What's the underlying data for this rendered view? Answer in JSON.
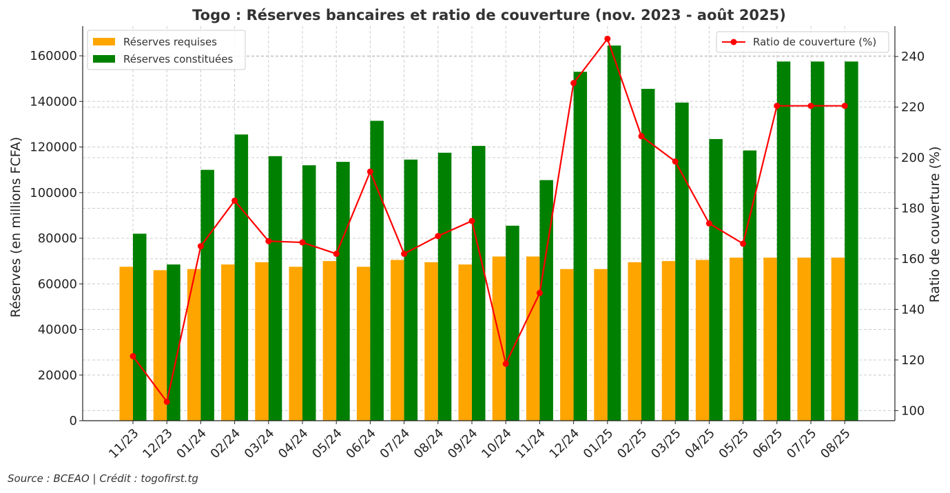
{
  "source_text": "Source : BCEAO | Crédit : togofirst.tg",
  "colors": {
    "required": "#ffa500",
    "held": "#008000",
    "ratio": "#ff0000",
    "grid": "#cccccc"
  },
  "chart_data": {
    "type": "bar",
    "title": "Togo : Réserves bancaires et ratio de couverture (nov. 2023 - août 2025)",
    "ylabel": "Réserves (en millions FCFA)",
    "y2label": "Ratio de couverture (%)",
    "categories": [
      "11/23",
      "12/23",
      "01/24",
      "02/24",
      "03/24",
      "04/24",
      "05/24",
      "06/24",
      "07/24",
      "08/24",
      "09/24",
      "10/24",
      "11/24",
      "12/24",
      "01/25",
      "02/25",
      "03/25",
      "04/25",
      "05/25",
      "06/25",
      "07/25",
      "08/25"
    ],
    "series": [
      {
        "name": "Réserves requises",
        "type": "bar",
        "axis": "left",
        "values": [
          67500,
          66000,
          66500,
          68500,
          69500,
          67500,
          70000,
          67500,
          70500,
          69500,
          68500,
          72000,
          72000,
          66500,
          66500,
          69500,
          70000,
          70500,
          71500,
          71500,
          71500,
          71500
        ]
      },
      {
        "name": "Réserves constituées",
        "type": "bar",
        "axis": "left",
        "values": [
          82000,
          68500,
          110000,
          125500,
          116000,
          112000,
          113500,
          131500,
          114500,
          117500,
          120500,
          85500,
          105500,
          153000,
          164500,
          145500,
          139500,
          123500,
          118500,
          157500,
          157500,
          157500
        ]
      },
      {
        "name": "Ratio de couverture (%)",
        "type": "line",
        "axis": "right",
        "values": [
          121.5,
          103.5,
          165,
          183,
          167,
          166.5,
          162,
          194.5,
          162,
          169,
          175,
          118.5,
          146.5,
          229.5,
          247,
          208.5,
          198.5,
          174,
          166,
          220.5,
          220.5,
          220.5
        ]
      }
    ],
    "ylim": [
      0,
      173000
    ],
    "yticks": [
      0,
      20000,
      40000,
      60000,
      80000,
      100000,
      120000,
      140000,
      160000
    ],
    "y2lim": [
      96,
      252
    ],
    "y2ticks": [
      100,
      120,
      140,
      160,
      180,
      200,
      220,
      240
    ],
    "grid": true,
    "legend_left": "top-left",
    "legend_right": "top-right"
  }
}
